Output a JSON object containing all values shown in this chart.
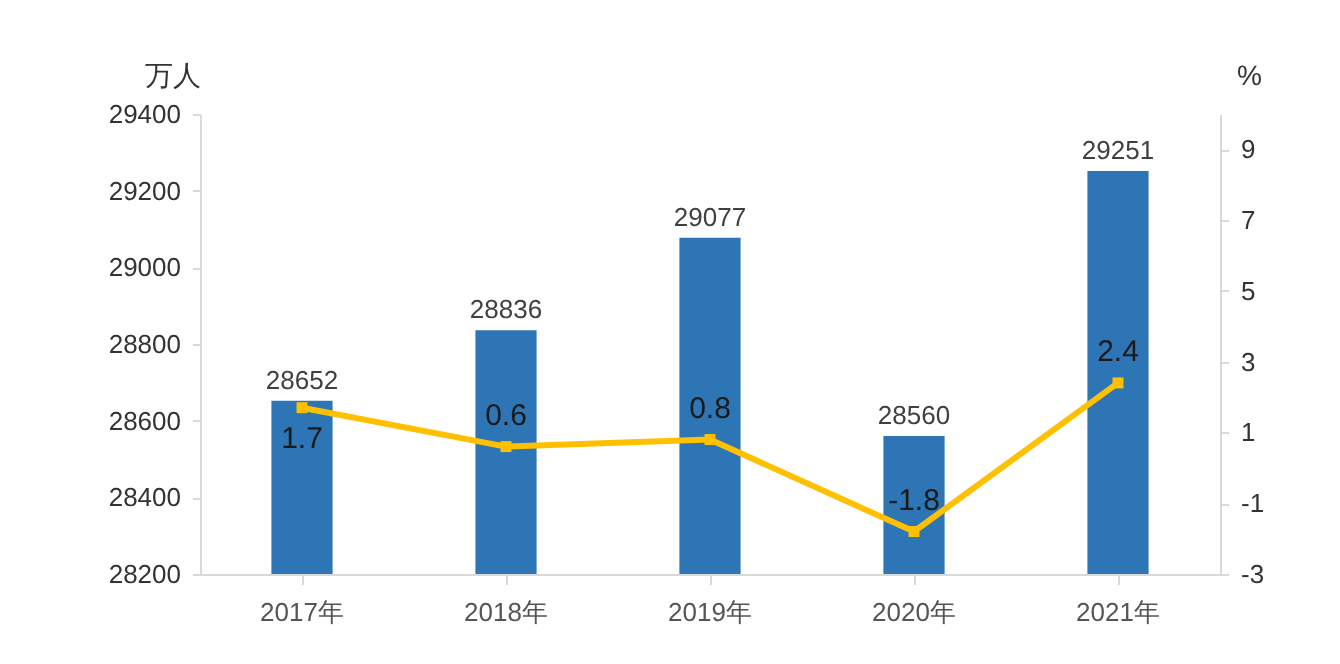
{
  "chart_data": {
    "type": "bar",
    "ylabel": "万人",
    "y2label": "%",
    "categories": [
      "2017年",
      "2018年",
      "2019年",
      "2020年",
      "2021年"
    ],
    "series": [
      {
        "color": "#2e75b6",
        "values": [
          28652,
          28836,
          29077,
          28560,
          29251
        ]
      },
      {
        "type": "line",
        "axis": "y2",
        "color": "#ffc000",
        "marker": "square",
        "values": [
          1.7,
          0.6,
          0.8,
          -1.8,
          2.4
        ]
      }
    ],
    "ylim": [
      28200,
      29400
    ],
    "yticks": [
      28200,
      28400,
      28600,
      28800,
      29000,
      29200,
      29400
    ],
    "y2lim": [
      -3,
      10
    ],
    "y2ticks": [
      -3,
      -1,
      1,
      3,
      5,
      7,
      9
    ],
    "data_labels": true,
    "grid": false
  }
}
